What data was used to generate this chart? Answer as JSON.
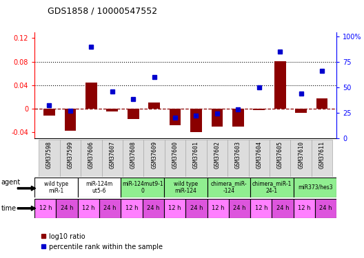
{
  "title": "GDS1858 / 10000547552",
  "samples": [
    "GSM37598",
    "GSM37599",
    "GSM37606",
    "GSM37607",
    "GSM37608",
    "GSM37609",
    "GSM37600",
    "GSM37601",
    "GSM37602",
    "GSM37603",
    "GSM37604",
    "GSM37605",
    "GSM37610",
    "GSM37611"
  ],
  "log10_ratio": [
    -0.012,
    -0.038,
    0.044,
    -0.005,
    -0.018,
    0.01,
    -0.028,
    -0.04,
    -0.03,
    -0.03,
    -0.003,
    0.081,
    -0.007,
    0.018
  ],
  "percentile_rank": [
    32,
    27,
    90,
    46,
    38,
    60,
    20,
    22,
    24,
    28,
    50,
    85,
    44,
    66
  ],
  "ylim_left": [
    -0.05,
    0.13
  ],
  "ylim_right": [
    0,
    104
  ],
  "hlines": [
    0.08,
    0.04
  ],
  "agent_groups": [
    {
      "label": "wild type\nmiR-1",
      "start": 0,
      "end": 2,
      "color": "#ffffff"
    },
    {
      "label": "miR-124m\nut5-6",
      "start": 2,
      "end": 4,
      "color": "#ffffff"
    },
    {
      "label": "miR-124mut9-1\n0",
      "start": 4,
      "end": 6,
      "color": "#90ee90"
    },
    {
      "label": "wild type\nmiR-124",
      "start": 6,
      "end": 8,
      "color": "#90ee90"
    },
    {
      "label": "chimera_miR-\n-124",
      "start": 8,
      "end": 10,
      "color": "#90ee90"
    },
    {
      "label": "chimera_miR-1\n24-1",
      "start": 10,
      "end": 12,
      "color": "#90ee90"
    },
    {
      "label": "miR373/hes3",
      "start": 12,
      "end": 14,
      "color": "#90ee90"
    }
  ],
  "time_labels": [
    "12 h",
    "24 h",
    "12 h",
    "24 h",
    "12 h",
    "24 h",
    "12 h",
    "24 h",
    "12 h",
    "24 h",
    "12 h",
    "24 h",
    "12 h",
    "24 h"
  ],
  "bar_color": "#8b0000",
  "dot_color": "#0000cd",
  "left_yticks": [
    -0.04,
    0,
    0.04,
    0.08,
    0.12
  ],
  "left_yticklabels": [
    "-0.04",
    "0",
    "0.04",
    "0.08",
    "0.12"
  ],
  "right_yticks": [
    0,
    25,
    50,
    75,
    100
  ],
  "right_yticklabels": [
    "0",
    "25",
    "50",
    "75",
    "100%"
  ]
}
